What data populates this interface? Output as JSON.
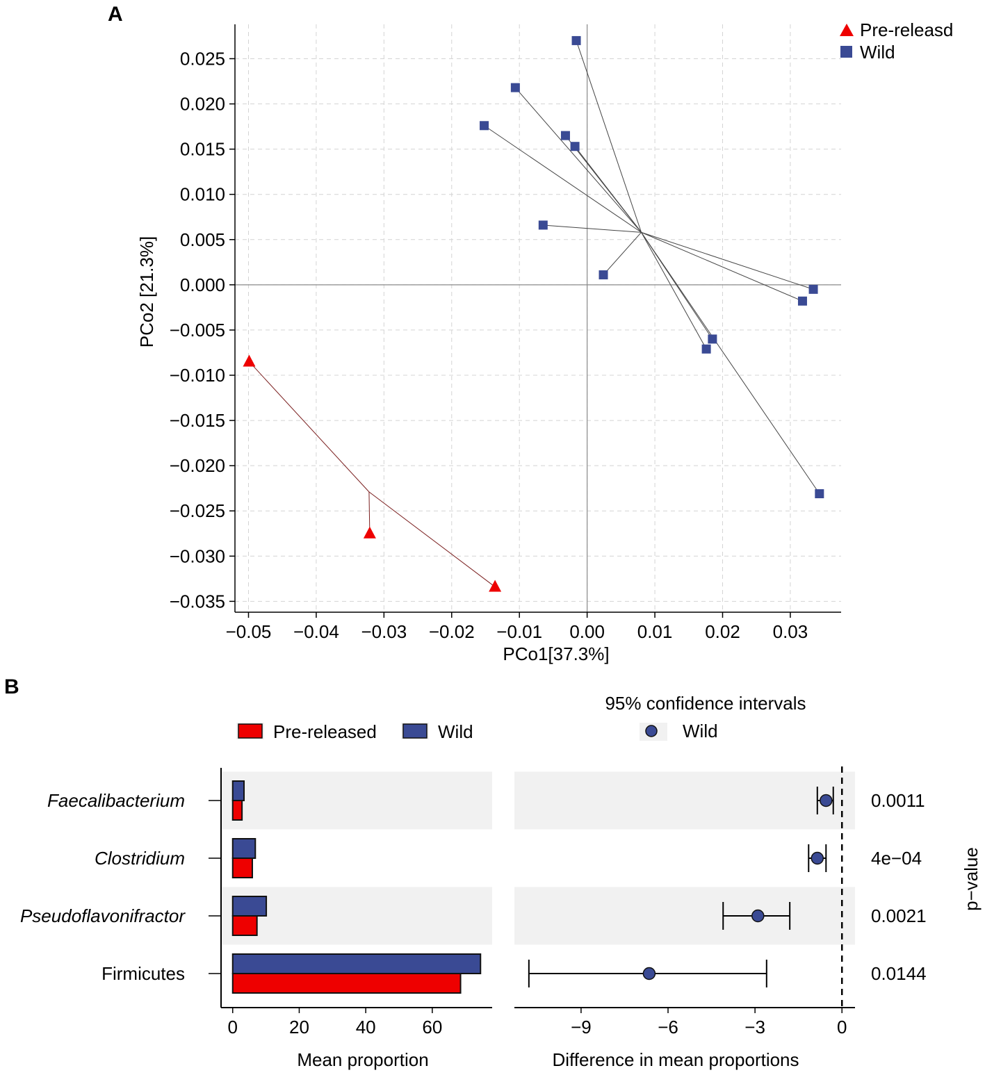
{
  "colors": {
    "prereleased": "#e41a1c",
    "prereleased_fill": "#ee0000",
    "wild": "#3a4a94",
    "line_wild": "#444444",
    "line_pre": "#7a1e1e",
    "grid": "#d4d4d4",
    "band": "#f1f1f1"
  },
  "chart_data": [
    {
      "panel_label": "A",
      "type": "scatter",
      "title": "",
      "xlabel": "PCo1[37.3%]",
      "ylabel": "PCo2 [21.3%]",
      "xlim": [
        -0.052,
        0.0375
      ],
      "ylim": [
        -0.0362,
        0.0288
      ],
      "xticks": [
        -0.05,
        -0.04,
        -0.03,
        -0.02,
        -0.01,
        0.0,
        0.01,
        0.02,
        0.03
      ],
      "xtick_labels": [
        "−0.05",
        "−0.04",
        "−0.03",
        "−0.02",
        "−0.01",
        "0.00",
        "0.01",
        "0.02",
        "0.03"
      ],
      "yticks": [
        0.025,
        0.02,
        0.015,
        0.01,
        0.005,
        0.0,
        -0.005,
        -0.01,
        -0.015,
        -0.02,
        -0.025,
        -0.03,
        -0.035
      ],
      "ytick_labels": [
        "0.025",
        "0.020",
        "0.015",
        "0.010",
        "0.005",
        "0.000",
        "−0.005",
        "−0.010",
        "−0.015",
        "−0.020",
        "−0.025",
        "−0.030",
        "−0.035"
      ],
      "grid": true,
      "legend_position": "top-right",
      "series": [
        {
          "name": "Pre-releasd",
          "marker": "triangle",
          "centroid": [
            -0.0322,
            -0.0229
          ],
          "points": [
            [
              -0.0499,
              -0.0085
            ],
            [
              -0.0321,
              -0.0275
            ],
            [
              -0.0136,
              -0.0334
            ]
          ]
        },
        {
          "name": "Wild",
          "marker": "square",
          "centroid": [
            0.008,
            0.0058
          ],
          "points": [
            [
              -0.0016,
              0.027
            ],
            [
              -0.0106,
              0.0218
            ],
            [
              -0.0152,
              0.0176
            ],
            [
              -0.0032,
              0.0165
            ],
            [
              -0.0018,
              0.0153
            ],
            [
              -0.0065,
              0.0066
            ],
            [
              0.0024,
              0.0011
            ],
            [
              0.0334,
              -0.0005
            ],
            [
              0.0318,
              -0.0018
            ],
            [
              0.0185,
              -0.006
            ],
            [
              0.0176,
              -0.0071
            ],
            [
              0.0343,
              -0.0231
            ]
          ]
        }
      ]
    },
    {
      "panel_label": "B",
      "type": "bar",
      "orientation": "horizontal",
      "categories": [
        "Faecalibacterium",
        "Clostridium",
        "Pseudoflavonifractor",
        "Firmicutes"
      ],
      "italic": [
        true,
        true,
        true,
        false
      ],
      "series": [
        {
          "name": "Wild",
          "values": [
            3.4,
            6.8,
            10.1,
            74.5
          ]
        },
        {
          "name": "Pre-released",
          "values": [
            2.8,
            5.9,
            7.3,
            68.5
          ]
        }
      ],
      "xlabel": "Mean proportion",
      "xlim": [
        -3.5,
        78
      ],
      "xticks": [
        0,
        20,
        40,
        60
      ],
      "xtick_labels": [
        "0",
        "20",
        "40",
        "60"
      ],
      "legend_position": "top"
    },
    {
      "panel_label": "",
      "type": "scatter",
      "subtype": "errorbar",
      "title": "95% confidence intervals",
      "legend": [
        "Wild"
      ],
      "categories": [
        "Faecalibacterium",
        "Clostridium",
        "Pseudoflavonifractor",
        "Firmicutes"
      ],
      "estimate": [
        -0.55,
        -0.85,
        -2.9,
        -6.65
      ],
      "ci_low": [
        -0.85,
        -1.15,
        -4.1,
        -10.8
      ],
      "ci_high": [
        -0.3,
        -0.55,
        -1.8,
        -2.6
      ],
      "xlabel": "Difference in mean proportions",
      "xlim": [
        -11.3,
        0.45
      ],
      "xticks": [
        -9,
        -6,
        -3,
        0
      ],
      "xtick_labels": [
        "−9",
        "−6",
        "−3",
        "0"
      ],
      "right_axis_label": "p−value",
      "p_values": [
        "0.0011",
        "4e−04",
        "0.0021",
        "0.0144"
      ]
    }
  ]
}
